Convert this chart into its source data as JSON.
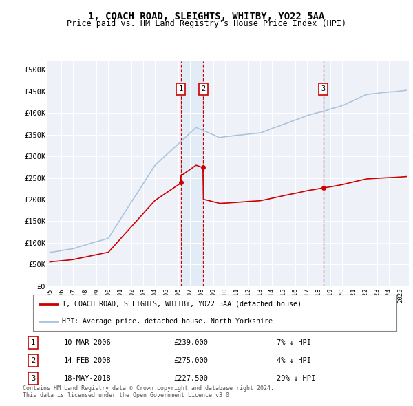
{
  "title": "1, COACH ROAD, SLEIGHTS, WHITBY, YO22 5AA",
  "subtitle": "Price paid vs. HM Land Registry's House Price Index (HPI)",
  "ylim": [
    0,
    520000
  ],
  "yticks": [
    0,
    50000,
    100000,
    150000,
    200000,
    250000,
    300000,
    350000,
    400000,
    450000,
    500000
  ],
  "ytick_labels": [
    "£0",
    "£50K",
    "£100K",
    "£150K",
    "£200K",
    "£250K",
    "£300K",
    "£350K",
    "£400K",
    "£450K",
    "£500K"
  ],
  "hpi_color": "#aac4de",
  "price_color": "#cc0000",
  "sale_marker_color": "#cc0000",
  "transactions": [
    {
      "num": 1,
      "date": "10-MAR-2006",
      "price": 239000,
      "hpi_diff": "7% ↓ HPI",
      "x": 2006.19
    },
    {
      "num": 2,
      "date": "14-FEB-2008",
      "price": 275000,
      "hpi_diff": "4% ↓ HPI",
      "x": 2008.12
    },
    {
      "num": 3,
      "date": "18-MAY-2018",
      "price": 227500,
      "hpi_diff": "29% ↓ HPI",
      "x": 2018.38
    }
  ],
  "legend_entries": [
    {
      "label": "1, COACH ROAD, SLEIGHTS, WHITBY, YO22 5AA (detached house)",
      "color": "#cc0000"
    },
    {
      "label": "HPI: Average price, detached house, North Yorkshire",
      "color": "#aac4de"
    }
  ],
  "footer_text": "Contains HM Land Registry data © Crown copyright and database right 2024.\nThis data is licensed under the Open Government Licence v3.0.",
  "background_color": "#ffffff",
  "plot_bg_color": "#eef2f8"
}
